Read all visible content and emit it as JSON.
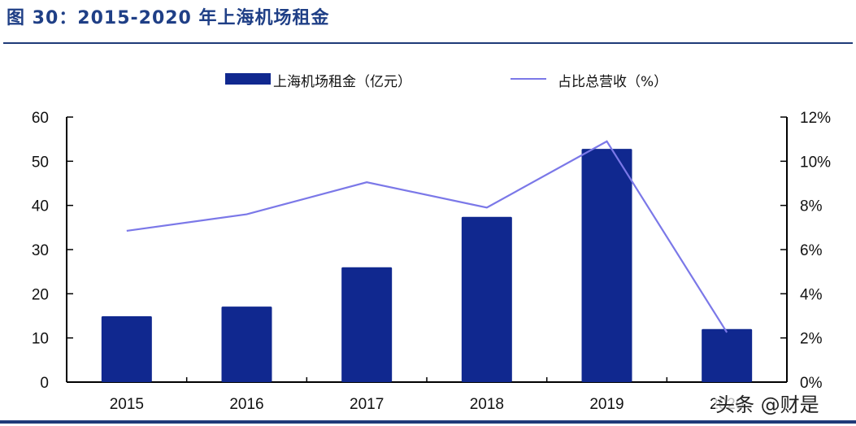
{
  "header": {
    "title": "图 30：2015-2020 年上海机场租金"
  },
  "legend": {
    "bar_label": "上海机场租金（亿元）",
    "line_label": "占比总营收（%）"
  },
  "watermark": "头条 @财是",
  "colors": {
    "bar": "#10288f",
    "line": "#7b78e8",
    "title": "#1f3f86",
    "rule": "#1f3a78"
  },
  "chart_data": {
    "type": "bar+line",
    "title": "2015-2020 年上海机场租金",
    "categories": [
      "2015",
      "2016",
      "2017",
      "2018",
      "2019",
      "2020"
    ],
    "series": [
      {
        "name": "上海机场租金（亿元）",
        "type": "bar",
        "axis": "left",
        "values": [
          14.9,
          17.1,
          26.0,
          37.4,
          52.8,
          12.0
        ]
      },
      {
        "name": "占比总营收（%）",
        "type": "line",
        "axis": "right",
        "values": [
          6.85,
          7.6,
          9.05,
          7.9,
          10.9,
          2.25
        ]
      }
    ],
    "left_axis": {
      "ylim": [
        0,
        60
      ],
      "ticks": [
        "0",
        "10",
        "20",
        "30",
        "40",
        "50",
        "60"
      ]
    },
    "right_axis": {
      "ylim": [
        0,
        12
      ],
      "ticks": [
        "0%",
        "2%",
        "4%",
        "6%",
        "8%",
        "10%",
        "12%"
      ]
    },
    "xlabel": "",
    "ylabel": "",
    "grid": false,
    "legend_position": "top"
  }
}
